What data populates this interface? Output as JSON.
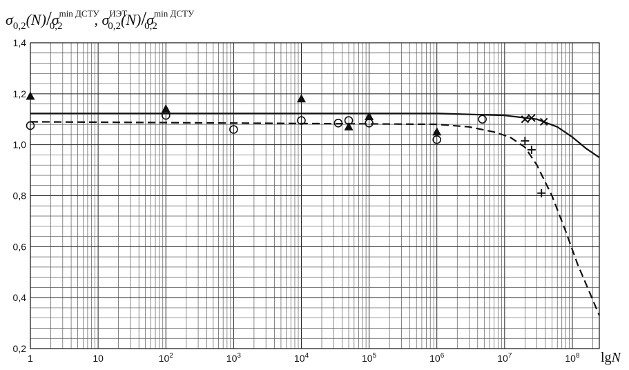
{
  "chart_data": {
    "type": "scatter",
    "title": "σ0,2(N)/σ0,2min ДСТУ , σ0,2ИЭТ(N)/σ0,2min ДСТУ",
    "title_parts": {
      "a_sym": "σ",
      "a_sub": "0,2",
      "a_arg": "(N)",
      "slash": "/",
      "b_sym": "σ",
      "b_sub": "0,2",
      "b_sup": "min ДСТУ",
      "comma": ",",
      "c_sym": "σ",
      "c_sub": "0,2",
      "c_sup": "ИЭТ",
      "c_arg": "(N)",
      "d_sym": "σ",
      "d_sub": "0,2",
      "d_sup": "min ДСТУ"
    },
    "xlabel": "lgN",
    "xlabel_parts": {
      "lg": "lg",
      "N": "N"
    },
    "xscale": "log",
    "xlim": [
      1,
      250000000
    ],
    "ylim": [
      0.2,
      1.4
    ],
    "grid": true,
    "x_ticks": [
      {
        "value": 1,
        "label": "1"
      },
      {
        "value": 10,
        "label": "10"
      },
      {
        "value": 100,
        "base": "10",
        "exp": "2"
      },
      {
        "value": 1000,
        "base": "10",
        "exp": "3"
      },
      {
        "value": 10000,
        "base": "10",
        "exp": "4"
      },
      {
        "value": 100000,
        "base": "10",
        "exp": "5"
      },
      {
        "value": 1000000,
        "base": "10",
        "exp": "6"
      },
      {
        "value": 10000000,
        "base": "10",
        "exp": "7"
      },
      {
        "value": 100000000,
        "base": "10",
        "exp": "8"
      }
    ],
    "y_ticks": [
      {
        "value": 0.2,
        "label": "0,2"
      },
      {
        "value": 0.4,
        "label": "0,4"
      },
      {
        "value": 0.6,
        "label": "0,6"
      },
      {
        "value": 0.8,
        "label": "0,8"
      },
      {
        "value": 1.0,
        "label": "1,0"
      },
      {
        "value": 1.2,
        "label": "1,2"
      },
      {
        "value": 1.4,
        "label": "1,4"
      }
    ],
    "series": [
      {
        "marker": "triangle",
        "points": [
          [
            1,
            1.19
          ],
          [
            100,
            1.14
          ],
          [
            10000,
            1.18
          ],
          [
            50000,
            1.07
          ],
          [
            100000,
            1.11
          ],
          [
            1000000,
            1.05
          ]
        ]
      },
      {
        "marker": "circle",
        "points": [
          [
            1,
            1.075
          ],
          [
            100,
            1.115
          ],
          [
            1000,
            1.06
          ],
          [
            10000,
            1.095
          ],
          [
            35000,
            1.085
          ],
          [
            50000,
            1.095
          ],
          [
            100000,
            1.085
          ],
          [
            1000000,
            1.02
          ],
          [
            4700000,
            1.1
          ]
        ]
      },
      {
        "marker": "cross-x",
        "points": [
          [
            20000000,
            1.1
          ],
          [
            25000000,
            1.105
          ],
          [
            38000000,
            1.09
          ]
        ]
      },
      {
        "marker": "plus",
        "points": [
          [
            20000000,
            1.015
          ],
          [
            25000000,
            0.98
          ],
          [
            35000000,
            0.81
          ]
        ]
      },
      {
        "line": "solid",
        "points": [
          [
            1,
            1.123
          ],
          [
            1000000,
            1.123
          ],
          [
            10000000,
            1.115
          ],
          [
            30000000,
            1.1
          ],
          [
            60000000,
            1.07
          ],
          [
            100000000,
            1.03
          ],
          [
            160000000,
            0.985
          ],
          [
            250000000,
            0.95
          ]
        ]
      },
      {
        "line": "dashed",
        "points": [
          [
            1,
            1.09
          ],
          [
            1000000,
            1.08
          ],
          [
            3000000,
            1.07
          ],
          [
            7000000,
            1.05
          ],
          [
            12000000,
            1.03
          ],
          [
            20000000,
            0.99
          ],
          [
            30000000,
            0.92
          ],
          [
            50000000,
            0.8
          ],
          [
            80000000,
            0.66
          ],
          [
            120000000,
            0.53
          ],
          [
            180000000,
            0.42
          ],
          [
            250000000,
            0.33
          ]
        ]
      }
    ]
  }
}
